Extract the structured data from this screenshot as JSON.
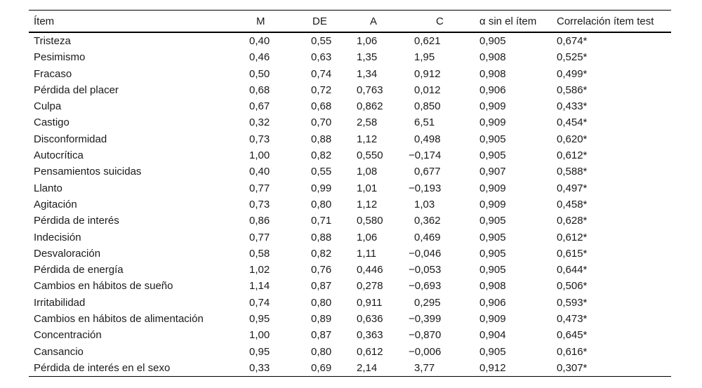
{
  "table": {
    "columns": [
      {
        "label": "Ítem"
      },
      {
        "label": "M"
      },
      {
        "label": "DE"
      },
      {
        "label": "A"
      },
      {
        "label": "C"
      },
      {
        "label": "α sin el ítem"
      },
      {
        "label": "Correlación ítem test"
      }
    ],
    "rows": [
      [
        "Tristeza",
        "0,40",
        "0,55",
        "1,06",
        "0,621",
        "0,905",
        "0,674*"
      ],
      [
        "Pesimismo",
        "0,46",
        "0,63",
        "1,35",
        "1,95",
        "0,908",
        "0,525*"
      ],
      [
        "Fracaso",
        "0,50",
        "0,74",
        "1,34",
        "0,912",
        "0,908",
        "0,499*"
      ],
      [
        "Pérdida del placer",
        "0,68",
        "0,72",
        "0,763",
        "0,012",
        "0,906",
        "0,586*"
      ],
      [
        "Culpa",
        "0,67",
        "0,68",
        "0,862",
        "0,850",
        "0,909",
        "0,433*"
      ],
      [
        "Castigo",
        "0,32",
        "0,70",
        "2,58",
        "6,51",
        "0,909",
        "0,454*"
      ],
      [
        "Disconformidad",
        "0,73",
        "0,88",
        "1,12",
        "0,498",
        "0,905",
        "0,620*"
      ],
      [
        "Autocrítica",
        "1,00",
        "0,82",
        "0,550",
        "−0,174",
        "0,905",
        "0,612*"
      ],
      [
        "Pensamientos suicidas",
        "0,40",
        "0,55",
        "1,08",
        "0,677",
        "0,907",
        "0,588*"
      ],
      [
        "Llanto",
        "0,77",
        "0,99",
        "1,01",
        "−0,193",
        "0,909",
        "0,497*"
      ],
      [
        "Agitación",
        "0,73",
        "0,80",
        "1,12",
        "1,03",
        "0,909",
        "0,458*"
      ],
      [
        "Pérdida de interés",
        "0,86",
        "0,71",
        "0,580",
        "0,362",
        "0,905",
        "0,628*"
      ],
      [
        "Indecisión",
        "0,77",
        "0,88",
        "1,06",
        "0,469",
        "0,905",
        "0,612*"
      ],
      [
        "Desvaloración",
        "0,58",
        "0,82",
        "1,11",
        "−0,046",
        "0,905",
        "0,615*"
      ],
      [
        "Pérdida de energía",
        "1,02",
        "0,76",
        "0,446",
        "−0,053",
        "0,905",
        "0,644*"
      ],
      [
        "Cambios en hábitos de sueño",
        "1,14",
        "0,87",
        "0,278",
        "−0,693",
        "0,908",
        "0,506*"
      ],
      [
        "Irritabilidad",
        "0,74",
        "0,80",
        "0,911",
        "0,295",
        "0,906",
        "0,593*"
      ],
      [
        "Cambios en hábitos de alimentación",
        "0,95",
        "0,89",
        "0,636",
        "−0,399",
        "0,909",
        "0,473*"
      ],
      [
        "Concentración",
        "1,00",
        "0,87",
        "0,363",
        "−0,870",
        "0,904",
        "0,645*"
      ],
      [
        "Cansancio",
        "0,95",
        "0,80",
        "0,612",
        "−0,006",
        "0,905",
        "0,616*"
      ],
      [
        "Pérdida de interés en el sexo",
        "0,33",
        "0,69",
        "2,14",
        "3,77",
        "0,912",
        "0,307*"
      ]
    ]
  }
}
